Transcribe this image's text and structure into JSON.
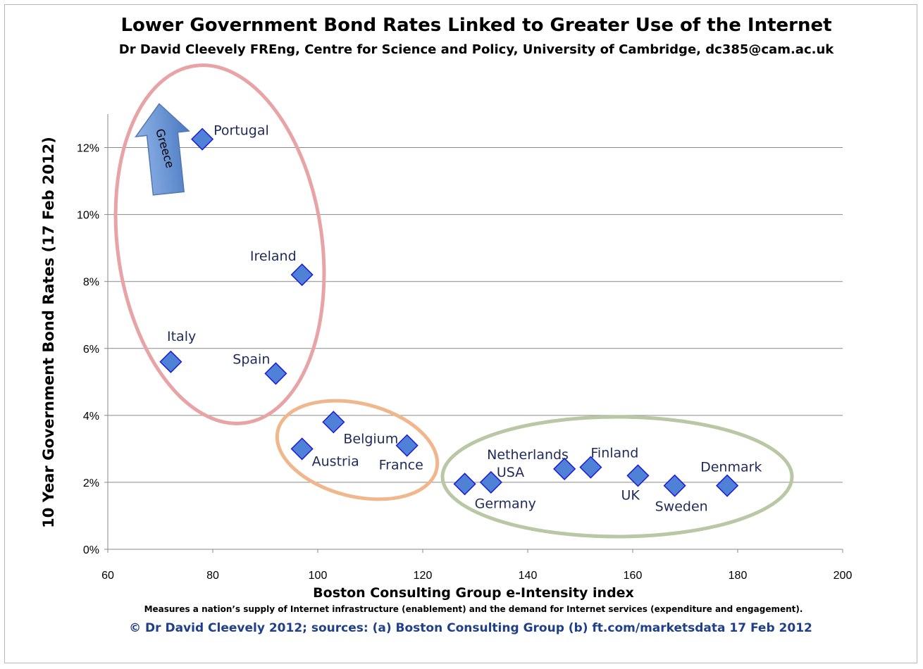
{
  "chart_data": {
    "type": "scatter",
    "title": "Lower Government Bond Rates Linked to Greater Use of the Internet",
    "subtitle": "Dr David Cleevely FREng, Centre for Science and Policy, University of Cambridge, dc385@cam.ac.uk",
    "xlabel": "Boston Consulting Group e-Intensity index",
    "x_note": "Measures a nation’s supply of Internet infrastructure (enablement) and the demand for Internet services (expenditure and engagement).",
    "ylabel": "10 Year Government Bond Rates (17 Feb 2012)",
    "source": "© Dr David Cleevely 2012; sources: (a) Boston Consulting Group  (b) ft.com/marketsdata 17 Feb  2012",
    "xlim": [
      60,
      200
    ],
    "ylim": [
      0,
      13
    ],
    "x_ticks": [
      60,
      80,
      100,
      120,
      140,
      160,
      180,
      200
    ],
    "x_tick_labels": [
      "60",
      "80",
      "100",
      "120",
      "140",
      "160",
      "180",
      "200"
    ],
    "y_ticks": [
      0,
      2,
      4,
      6,
      8,
      10,
      12
    ],
    "y_tick_labels": [
      "0%",
      "2%",
      "4%",
      "6%",
      "8%",
      "10%",
      "12%"
    ],
    "grid": "horizontal",
    "arrow_annotation": "Greece",
    "marker_color": "#4f81d6",
    "marker_edge_color": "#1a1adb",
    "points": [
      {
        "label": "Portugal",
        "x": 78,
        "y": 12.25
      },
      {
        "label": "Ireland",
        "x": 97,
        "y": 8.2
      },
      {
        "label": "Italy",
        "x": 72,
        "y": 5.6
      },
      {
        "label": "Spain",
        "x": 92,
        "y": 5.25
      },
      {
        "label": "Belgium",
        "x": 103,
        "y": 3.8
      },
      {
        "label": "Austria",
        "x": 97,
        "y": 3.0
      },
      {
        "label": "France",
        "x": 117,
        "y": 3.1
      },
      {
        "label": "Germany",
        "x": 128,
        "y": 1.95
      },
      {
        "label": "USA",
        "x": 133,
        "y": 2.0
      },
      {
        "label": "Netherlands",
        "x": 147,
        "y": 2.4
      },
      {
        "label": "Finland",
        "x": 152,
        "y": 2.45
      },
      {
        "label": "UK",
        "x": 161,
        "y": 2.2
      },
      {
        "label": "Sweden",
        "x": 168,
        "y": 1.9
      },
      {
        "label": "Denmark",
        "x": 178,
        "y": 1.9
      }
    ],
    "groups": [
      {
        "color": "#e8a3a6"
      },
      {
        "color": "#f0b78d"
      },
      {
        "color": "#b8c7a4"
      }
    ]
  }
}
